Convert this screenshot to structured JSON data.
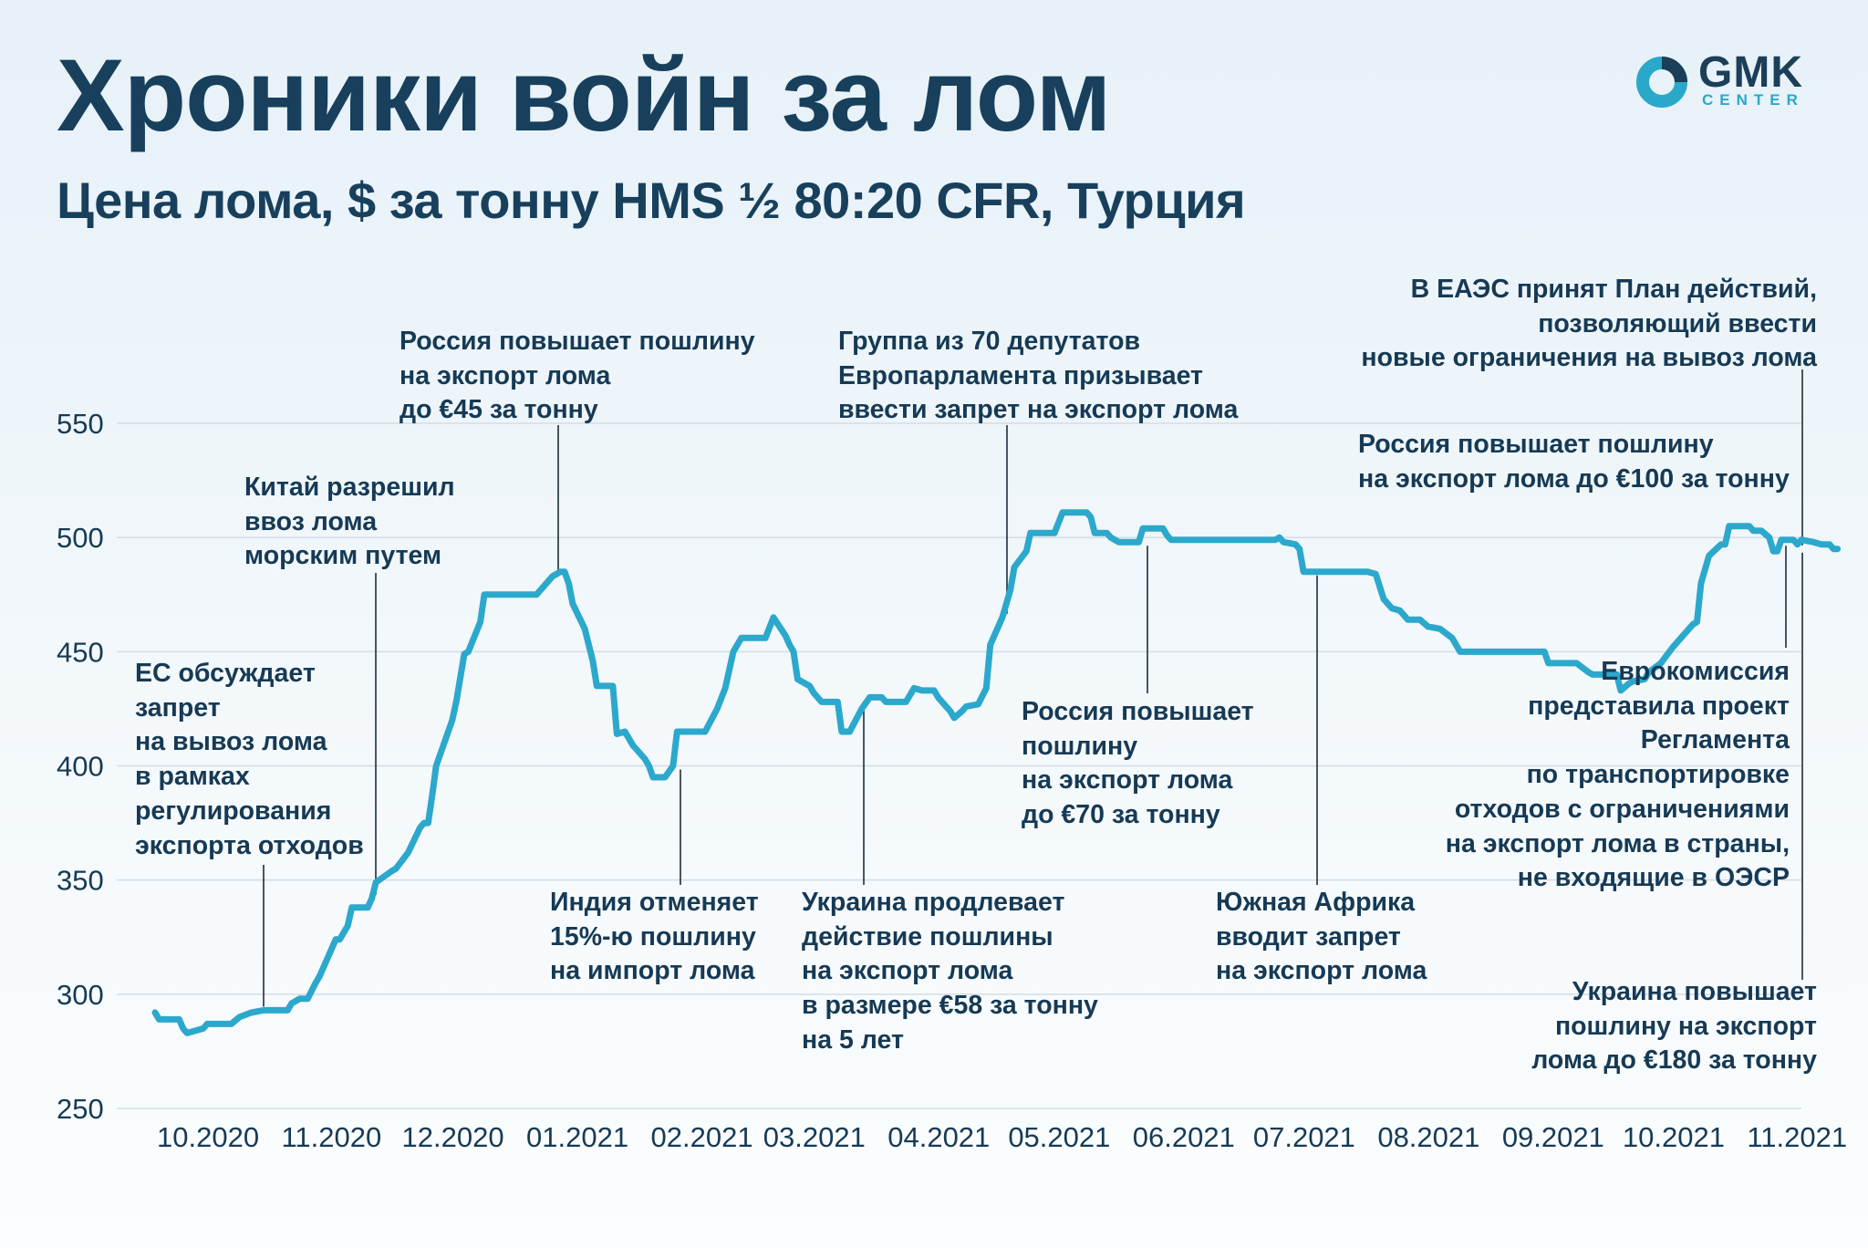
{
  "header": {
    "title": "Хроники войн за лом",
    "subtitle": "Цена лома, $ за тонну HMS ½ 80:20 CFR, Турция"
  },
  "logo": {
    "name": "GMK",
    "sub": "CENTER",
    "icon": "gmk-ring-icon",
    "colors": {
      "ring": "#2aa8c9",
      "text": "#1c3f59"
    }
  },
  "colors": {
    "line": "#2ca8cc",
    "grid": "#d3dde5",
    "text": "#163a55"
  },
  "chart_data": {
    "type": "line",
    "title": "Цена лома, $ за тонну HMS ½ 80:20 CFR, Турция",
    "xlabel": "",
    "ylabel": "",
    "ylim": [
      250,
      560
    ],
    "yticks": [
      250,
      300,
      350,
      400,
      450,
      500,
      550
    ],
    "xlim": [
      "2020-10-01",
      "2021-11-15"
    ],
    "xticks": [
      {
        "date": "2020-10-01",
        "label": "10.2020"
      },
      {
        "date": "2020-11-01",
        "label": "11.2020"
      },
      {
        "date": "2020-12-01",
        "label": "12.2020"
      },
      {
        "date": "2021-01-01",
        "label": "01.2021"
      },
      {
        "date": "2021-02-01",
        "label": "02.2021"
      },
      {
        "date": "2021-03-01",
        "label": "03.2021"
      },
      {
        "date": "2021-04-01",
        "label": "04.2021"
      },
      {
        "date": "2021-05-01",
        "label": "05.2021"
      },
      {
        "date": "2021-06-01",
        "label": "06.2021"
      },
      {
        "date": "2021-07-01",
        "label": "07.2021"
      },
      {
        "date": "2021-08-01",
        "label": "08.2021"
      },
      {
        "date": "2021-09-01",
        "label": "09.2021"
      },
      {
        "date": "2021-10-01",
        "label": "10.2021"
      },
      {
        "date": "2021-11-01",
        "label": "11.2021"
      }
    ],
    "grid": true,
    "legend": "none",
    "series": [
      {
        "points": [
          [
            "2020-10-01",
            292
          ],
          [
            "2020-10-02",
            289
          ],
          [
            "2020-10-07",
            289
          ],
          [
            "2020-10-08",
            285
          ],
          [
            "2020-10-09",
            283
          ],
          [
            "2020-10-11",
            284
          ],
          [
            "2020-10-13",
            285
          ],
          [
            "2020-10-14",
            287
          ],
          [
            "2020-10-20",
            287
          ],
          [
            "2020-10-22",
            290
          ],
          [
            "2020-10-25",
            292
          ],
          [
            "2020-10-28",
            293
          ],
          [
            "2020-11-03",
            293
          ],
          [
            "2020-11-04",
            296
          ],
          [
            "2020-11-06",
            298
          ],
          [
            "2020-11-08",
            298
          ],
          [
            "2020-11-10",
            305
          ],
          [
            "2020-11-11",
            308
          ],
          [
            "2020-11-13",
            316
          ],
          [
            "2020-11-15",
            324
          ],
          [
            "2020-11-16",
            324
          ],
          [
            "2020-11-18",
            330
          ],
          [
            "2020-11-19",
            338
          ],
          [
            "2020-11-23",
            338
          ],
          [
            "2020-11-24",
            342
          ],
          [
            "2020-11-25",
            349
          ],
          [
            "2020-11-29",
            354
          ],
          [
            "2020-11-30",
            355
          ],
          [
            "2020-12-03",
            362
          ],
          [
            "2020-12-06",
            373
          ],
          [
            "2020-12-07",
            375
          ],
          [
            "2020-12-08",
            375
          ],
          [
            "2020-12-09",
            387
          ],
          [
            "2020-12-10",
            400
          ],
          [
            "2020-12-14",
            420
          ],
          [
            "2020-12-15",
            428
          ],
          [
            "2020-12-17",
            449
          ],
          [
            "2020-12-18",
            450
          ],
          [
            "2020-12-21",
            463
          ],
          [
            "2020-12-22",
            475
          ],
          [
            "2020-12-31",
            475
          ],
          [
            "2021-01-03",
            475
          ],
          [
            "2021-01-04",
            475
          ],
          [
            "2021-01-08",
            483
          ],
          [
            "2021-01-10",
            485
          ],
          [
            "2021-01-11",
            485
          ],
          [
            "2021-01-12",
            480
          ],
          [
            "2021-01-13",
            471
          ],
          [
            "2021-01-16",
            460
          ],
          [
            "2021-01-18",
            446
          ],
          [
            "2021-01-19",
            435
          ],
          [
            "2021-01-23",
            435
          ],
          [
            "2021-01-24",
            414
          ],
          [
            "2021-01-26",
            415
          ],
          [
            "2021-01-28",
            409
          ],
          [
            "2021-01-30",
            405
          ],
          [
            "2021-01-31",
            403
          ],
          [
            "2021-02-01",
            400
          ],
          [
            "2021-02-02",
            395
          ],
          [
            "2021-02-05",
            395
          ],
          [
            "2021-02-07",
            400
          ],
          [
            "2021-02-08",
            415
          ],
          [
            "2021-02-15",
            415
          ],
          [
            "2021-02-18",
            425
          ],
          [
            "2021-02-20",
            434
          ],
          [
            "2021-02-22",
            450
          ],
          [
            "2021-02-24",
            456
          ],
          [
            "2021-03-01",
            456
          ],
          [
            "2021-03-02",
            456
          ],
          [
            "2021-03-04",
            465
          ],
          [
            "2021-03-07",
            457
          ],
          [
            "2021-03-08",
            453
          ],
          [
            "2021-03-09",
            450
          ],
          [
            "2021-03-10",
            438
          ],
          [
            "2021-03-13",
            435
          ],
          [
            "2021-03-14",
            432
          ],
          [
            "2021-03-16",
            428
          ],
          [
            "2021-03-20",
            428
          ],
          [
            "2021-03-21",
            415
          ],
          [
            "2021-03-23",
            415
          ],
          [
            "2021-03-26",
            425
          ],
          [
            "2021-03-28",
            430
          ],
          [
            "2021-03-31",
            430
          ],
          [
            "2021-04-01",
            428
          ],
          [
            "2021-04-06",
            428
          ],
          [
            "2021-04-08",
            434
          ],
          [
            "2021-04-10",
            433
          ],
          [
            "2021-04-13",
            433
          ],
          [
            "2021-04-14",
            430
          ],
          [
            "2021-04-17",
            424
          ],
          [
            "2021-04-18",
            421
          ],
          [
            "2021-04-20",
            424
          ],
          [
            "2021-04-21",
            426
          ],
          [
            "2021-04-24",
            427
          ],
          [
            "2021-04-26",
            434
          ],
          [
            "2021-04-27",
            453
          ],
          [
            "2021-04-30",
            465
          ],
          [
            "2021-05-02",
            477
          ],
          [
            "2021-05-03",
            487
          ],
          [
            "2021-05-06",
            494
          ],
          [
            "2021-05-07",
            502
          ],
          [
            "2021-05-13",
            502
          ],
          [
            "2021-05-15",
            511
          ],
          [
            "2021-05-21",
            511
          ],
          [
            "2021-05-22",
            509
          ],
          [
            "2021-05-23",
            502
          ],
          [
            "2021-05-26",
            502
          ],
          [
            "2021-05-27",
            500
          ],
          [
            "2021-05-29",
            498
          ],
          [
            "2021-06-03",
            498
          ],
          [
            "2021-06-04",
            504
          ],
          [
            "2021-06-09",
            504
          ],
          [
            "2021-06-10",
            501
          ],
          [
            "2021-06-11",
            499
          ],
          [
            "2021-06-30",
            499
          ],
          [
            "2021-07-07",
            499
          ],
          [
            "2021-07-08",
            500
          ],
          [
            "2021-07-09",
            498
          ],
          [
            "2021-07-12",
            497
          ],
          [
            "2021-07-13",
            495
          ],
          [
            "2021-07-14",
            485
          ],
          [
            "2021-07-30",
            485
          ],
          [
            "2021-08-01",
            484
          ],
          [
            "2021-08-03",
            473
          ],
          [
            "2021-08-05",
            469
          ],
          [
            "2021-08-07",
            468
          ],
          [
            "2021-08-09",
            464
          ],
          [
            "2021-08-12",
            464
          ],
          [
            "2021-08-14",
            461
          ],
          [
            "2021-08-17",
            460
          ],
          [
            "2021-08-20",
            456
          ],
          [
            "2021-08-21",
            453
          ],
          [
            "2021-08-22",
            450
          ],
          [
            "2021-08-29",
            450
          ],
          [
            "2021-08-31",
            450
          ],
          [
            "2021-09-12",
            450
          ],
          [
            "2021-09-13",
            445
          ],
          [
            "2021-09-20",
            445
          ],
          [
            "2021-09-23",
            441
          ],
          [
            "2021-09-24",
            440
          ],
          [
            "2021-09-26",
            440
          ],
          [
            "2021-09-30",
            440
          ],
          [
            "2021-10-01",
            433
          ],
          [
            "2021-10-03",
            436
          ],
          [
            "2021-10-04",
            437
          ],
          [
            "2021-10-07",
            438
          ],
          [
            "2021-10-08",
            441
          ],
          [
            "2021-10-11",
            445
          ],
          [
            "2021-10-14",
            452
          ],
          [
            "2021-10-19",
            462
          ],
          [
            "2021-10-20",
            463
          ],
          [
            "2021-10-21",
            480
          ],
          [
            "2021-10-23",
            492
          ],
          [
            "2021-10-26",
            497
          ],
          [
            "2021-10-27",
            497
          ],
          [
            "2021-10-28",
            505
          ],
          [
            "2021-10-31",
            505
          ],
          [
            "2021-11-02",
            505
          ],
          [
            "2021-11-03",
            503
          ],
          [
            "2021-11-05",
            503
          ],
          [
            "2021-11-07",
            500
          ],
          [
            "2021-11-08",
            494
          ],
          [
            "2021-11-09",
            494
          ],
          [
            "2021-11-10",
            499
          ],
          [
            "2021-11-13",
            499
          ],
          [
            "2021-11-14",
            497
          ],
          [
            "2021-11-15",
            499
          ],
          [
            "2021-11-18",
            498
          ],
          [
            "2021-11-20",
            497
          ],
          [
            "2021-11-22",
            497
          ],
          [
            "2021-11-23",
            495
          ],
          [
            "2021-11-24",
            495
          ]
        ]
      }
    ]
  },
  "annotations": [
    {
      "id": "eu-discusses-ban",
      "text": "ЕС обсуждает\nзапрет\nна вывоз лома\nв рамках\nрегулирования\nэкспорта отходов",
      "anchor_date": "2020-10-28",
      "anchor_value": 293,
      "side": "above"
    },
    {
      "id": "china-allows-import",
      "text": "Китай разрешил\nввоз лома\nморским путем",
      "anchor_date": "2020-11-24",
      "anchor_value": 342,
      "side": "above"
    },
    {
      "id": "russia-raises-45",
      "text": "Россия повышает пошлину\nна экспорт лома\nдо €45 за тонну",
      "anchor_date": "2021-01-08",
      "anchor_value": 483,
      "side": "above"
    },
    {
      "id": "india-cancels-duty",
      "text": "Индия отменяет\n15%-ю пошлину\nна импорт лома",
      "anchor_date": "2021-02-07",
      "anchor_value": 400,
      "side": "below"
    },
    {
      "id": "ukraine-extends-58",
      "text": "Украина продлевает\nдействие пошлины\nна экспорт лома\nв размере €58 за тонну\nна 5 лет",
      "anchor_date": "2021-03-28",
      "anchor_value": 430,
      "side": "below"
    },
    {
      "id": "meps-call-ban",
      "text": "Группа из 70 депутатов\nЕвропарламента призывает\nввести запрет на экспорт лома",
      "anchor_date": "2021-04-30",
      "anchor_value": 465,
      "side": "above"
    },
    {
      "id": "russia-raises-70",
      "text": "Россия повышает\nпошлину\nна экспорт лома\nдо €70 за тонну",
      "anchor_date": "2021-06-01",
      "anchor_value": 498,
      "side": "below"
    },
    {
      "id": "south-africa-ban",
      "text": "Южная Африка\nвводит запрет\nна экспорт лома",
      "anchor_date": "2021-07-22",
      "anchor_value": 485,
      "side": "below"
    },
    {
      "id": "russia-raises-100",
      "text": "Россия повышает пошлину\nна экспорт лома до €100 за тонну",
      "anchor_date": "2021-11-01",
      "anchor_value": 505,
      "side": "above",
      "nolead": true
    },
    {
      "id": "eaeu-action-plan",
      "text": "В ЕАЭС принят План действий,\nпозволяющий ввести\nновые ограничения на вывоз лома",
      "anchor_date": "2021-11-24",
      "anchor_value": 495,
      "side": "above"
    },
    {
      "id": "ec-regulation-proposal",
      "text": "Еврокомиссия\nпредставила проект\nРегламента\nпо транспортировке\nотходов с ограничениями\nна экспорт лома в страны,\nне входящие в ОЭСР",
      "anchor_date": "2021-11-17",
      "anchor_value": 498,
      "side": "below"
    },
    {
      "id": "ukraine-raises-180",
      "text": "Украина повышает\nпошлину на экспорт\nлома до €180 за тонну",
      "anchor_date": "2021-11-24",
      "anchor_value": 495,
      "side": "below"
    }
  ]
}
